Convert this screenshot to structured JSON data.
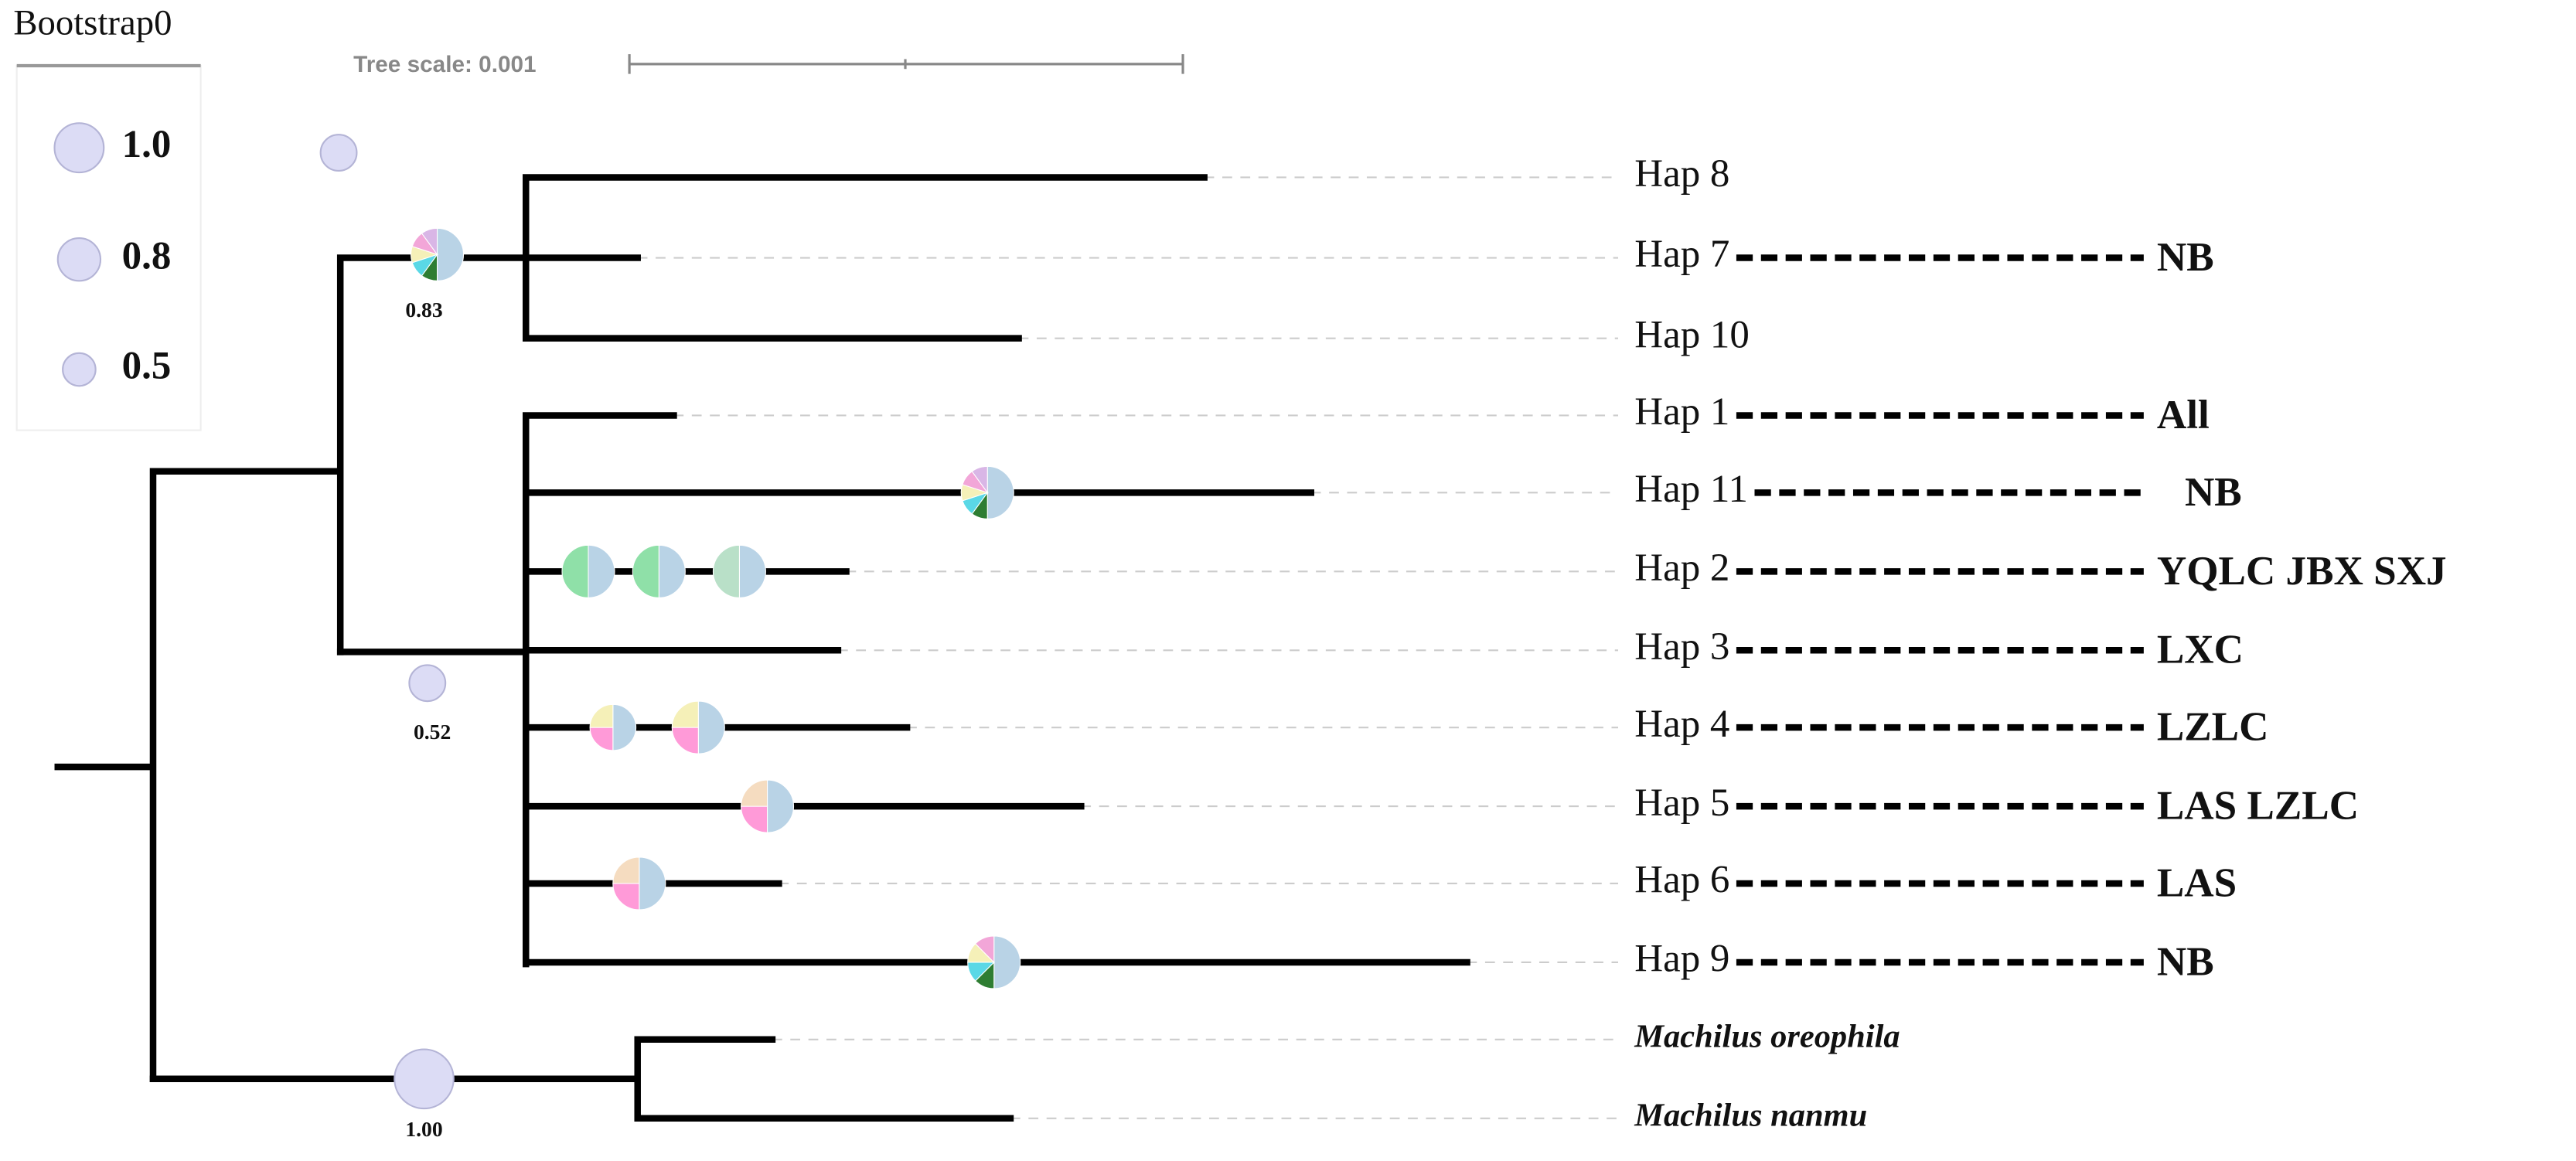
{
  "legend": {
    "title": "Bootstrap0",
    "items": [
      "1.0",
      "0.8",
      "0.5"
    ]
  },
  "scale": {
    "label": "Tree scale: 0.001"
  },
  "bootstrap_labels": [
    "0.83",
    "0.52",
    "1.00"
  ],
  "leaves": [
    {
      "label": "Hap 8"
    },
    {
      "label": "Hap 7",
      "population": "NB"
    },
    {
      "label": "Hap 10"
    },
    {
      "label": "Hap 1",
      "population": "All"
    },
    {
      "label": "Hap 11",
      "population": "NB"
    },
    {
      "label": "Hap 2",
      "population": "YQLC JBX SXJ"
    },
    {
      "label": "Hap 3",
      "population": "LXC"
    },
    {
      "label": "Hap 4",
      "population": "LZLC"
    },
    {
      "label": "Hap 5",
      "population": "LAS LZLC"
    },
    {
      "label": "Hap 6",
      "population": "LAS"
    },
    {
      "label": "Hap 9",
      "population": "NB"
    },
    {
      "label": "Machilus oreophila"
    },
    {
      "label": "Machilus nanmu"
    }
  ]
}
